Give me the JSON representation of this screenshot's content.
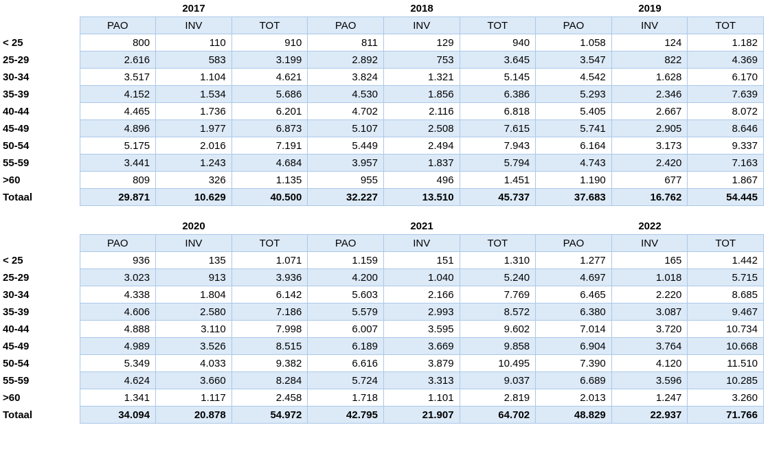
{
  "colors": {
    "border": "#abc8e8",
    "stripe_bg": "#dce9f7",
    "header_bg": "#dce9f7",
    "text": "#000000",
    "page_bg": "#ffffff"
  },
  "row_labels": [
    "< 25",
    "25-29",
    "30-34",
    "35-39",
    "40-44",
    "45-49",
    "50-54",
    "55-59",
    ">60",
    "Totaal"
  ],
  "col_headers": [
    "PAO",
    "INV",
    "TOT"
  ],
  "tables": [
    {
      "years": [
        "2017",
        "2018",
        "2019"
      ],
      "rows": [
        [
          "800",
          "110",
          "910",
          "811",
          "129",
          "940",
          "1.058",
          "124",
          "1.182"
        ],
        [
          "2.616",
          "583",
          "3.199",
          "2.892",
          "753",
          "3.645",
          "3.547",
          "822",
          "4.369"
        ],
        [
          "3.517",
          "1.104",
          "4.621",
          "3.824",
          "1.321",
          "5.145",
          "4.542",
          "1.628",
          "6.170"
        ],
        [
          "4.152",
          "1.534",
          "5.686",
          "4.530",
          "1.856",
          "6.386",
          "5.293",
          "2.346",
          "7.639"
        ],
        [
          "4.465",
          "1.736",
          "6.201",
          "4.702",
          "2.116",
          "6.818",
          "5.405",
          "2.667",
          "8.072"
        ],
        [
          "4.896",
          "1.977",
          "6.873",
          "5.107",
          "2.508",
          "7.615",
          "5.741",
          "2.905",
          "8.646"
        ],
        [
          "5.175",
          "2.016",
          "7.191",
          "5.449",
          "2.494",
          "7.943",
          "6.164",
          "3.173",
          "9.337"
        ],
        [
          "3.441",
          "1.243",
          "4.684",
          "3.957",
          "1.837",
          "5.794",
          "4.743",
          "2.420",
          "7.163"
        ],
        [
          "809",
          "326",
          "1.135",
          "955",
          "496",
          "1.451",
          "1.190",
          "677",
          "1.867"
        ],
        [
          "29.871",
          "10.629",
          "40.500",
          "32.227",
          "13.510",
          "45.737",
          "37.683",
          "16.762",
          "54.445"
        ]
      ]
    },
    {
      "years": [
        "2020",
        "2021",
        "2022"
      ],
      "rows": [
        [
          "936",
          "135",
          "1.071",
          "1.159",
          "151",
          "1.310",
          "1.277",
          "165",
          "1.442"
        ],
        [
          "3.023",
          "913",
          "3.936",
          "4.200",
          "1.040",
          "5.240",
          "4.697",
          "1.018",
          "5.715"
        ],
        [
          "4.338",
          "1.804",
          "6.142",
          "5.603",
          "2.166",
          "7.769",
          "6.465",
          "2.220",
          "8.685"
        ],
        [
          "4.606",
          "2.580",
          "7.186",
          "5.579",
          "2.993",
          "8.572",
          "6.380",
          "3.087",
          "9.467"
        ],
        [
          "4.888",
          "3.110",
          "7.998",
          "6.007",
          "3.595",
          "9.602",
          "7.014",
          "3.720",
          "10.734"
        ],
        [
          "4.989",
          "3.526",
          "8.515",
          "6.189",
          "3.669",
          "9.858",
          "6.904",
          "3.764",
          "10.668"
        ],
        [
          "5.349",
          "4.033",
          "9.382",
          "6.616",
          "3.879",
          "10.495",
          "7.390",
          "4.120",
          "11.510"
        ],
        [
          "4.624",
          "3.660",
          "8.284",
          "5.724",
          "3.313",
          "9.037",
          "6.689",
          "3.596",
          "10.285"
        ],
        [
          "1.341",
          "1.117",
          "2.458",
          "1.718",
          "1.101",
          "2.819",
          "2.013",
          "1.247",
          "3.260"
        ],
        [
          "34.094",
          "20.878",
          "54.972",
          "42.795",
          "21.907",
          "64.702",
          "48.829",
          "22.937",
          "71.766"
        ]
      ]
    }
  ]
}
